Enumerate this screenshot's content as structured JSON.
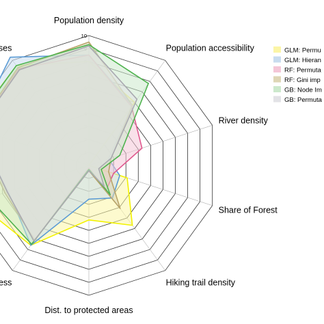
{
  "chart_data": {
    "type": "radar",
    "r_range": [
      0,
      10
    ],
    "ticks": [
      "1",
      "2",
      "3",
      "4",
      "5",
      "6",
      "7",
      "8",
      "9",
      "10"
    ],
    "axes": [
      "Population density",
      "Population accessibility",
      "River density",
      "Share of Forest",
      "Hiking trail density",
      "Dist. to protected areas",
      "roughness",
      "",
      "",
      "use classes"
    ],
    "series": [
      {
        "name": "GLM: Permu",
        "color": "#f2f200",
        "fill": "#fbf5a6",
        "values": [
          8,
          6,
          0,
          3.1,
          5.7,
          4.2,
          7.6,
          9.1,
          9.6,
          9.5
        ]
      },
      {
        "name": "GLM: Hieran",
        "color": "#5b9bd5",
        "fill": "#c8dcef",
        "values": [
          8.5,
          5.7,
          1.6,
          2.5,
          3.1,
          2.6,
          7.6,
          6.5,
          9.2,
          10.3
        ]
      },
      {
        "name": "RF: Permuta",
        "color": "#e05a8f",
        "fill": "#f4c6d7",
        "values": [
          8.5,
          5.6,
          4.3,
          2.0,
          2.3,
          0.2,
          7.1,
          6.8,
          9.1,
          9.2
        ]
      },
      {
        "name": "RF: Gini imp",
        "color": "#b8a46a",
        "fill": "#ded6b5",
        "values": [
          9.5,
          5.7,
          1.8,
          1.6,
          4.1,
          0.4,
          7.1,
          6.8,
          9.1,
          9.3
        ]
      },
      {
        "name": "GB: Node Im",
        "color": "#4fb34f",
        "fill": "#cce9cc",
        "values": [
          9.3,
          7.8,
          2.5,
          1.0,
          2.8,
          0.3,
          7.5,
          8.1,
          9.5,
          9.5
        ]
      },
      {
        "name": "GB: Permuta",
        "color": "#a9a9b0",
        "fill": "#e2e2e6",
        "values": [
          9.2,
          6.3,
          1.8,
          0.8,
          2.0,
          0.4,
          7.2,
          6.6,
          9.0,
          9.1
        ]
      }
    ]
  }
}
